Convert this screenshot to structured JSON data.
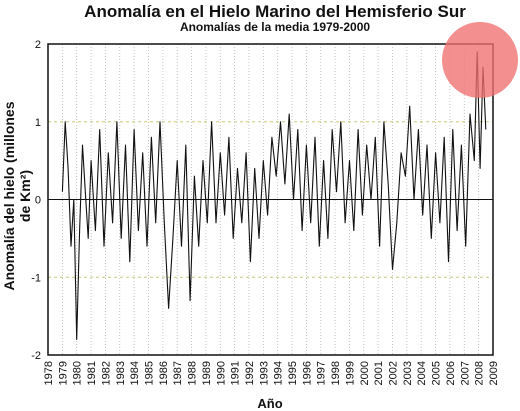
{
  "chart_data": {
    "type": "line",
    "title": "Anomalía en el Hielo Marino del Hemisferio Sur",
    "subtitle": "Anomalías de la media 1979-2000",
    "xlabel": "Año",
    "ylabel": "Anomalía del hielo (millones de Km²)",
    "xlim": [
      1978,
      2009
    ],
    "ylim": [
      -2,
      2
    ],
    "x_ticks": [
      "1978",
      "1979",
      "1980",
      "1981",
      "1982",
      "1983",
      "1984",
      "1985",
      "1986",
      "1987",
      "1988",
      "1989",
      "1990",
      "1991",
      "1992",
      "1993",
      "1994",
      "1995",
      "1996",
      "1997",
      "1998",
      "1999",
      "2000",
      "2001",
      "2002",
      "2003",
      "2004",
      "2005",
      "2006",
      "2007",
      "2008",
      "2009"
    ],
    "y_ticks": [
      "-2",
      "-1",
      "0",
      "1",
      "2"
    ],
    "grid": true,
    "series": [
      {
        "x": [
          1979.0,
          1979.2,
          1979.4,
          1979.6,
          1979.8,
          1980.0,
          1980.2,
          1980.4,
          1980.6,
          1980.8,
          1981.0,
          1981.3,
          1981.6,
          1981.9,
          1982.2,
          1982.5,
          1982.8,
          1983.1,
          1983.4,
          1983.7,
          1984.0,
          1984.3,
          1984.6,
          1984.9,
          1985.2,
          1985.5,
          1985.8,
          1986.1,
          1986.4,
          1986.7,
          1987.0,
          1987.3,
          1987.6,
          1987.9,
          1988.2,
          1988.5,
          1988.8,
          1989.1,
          1989.4,
          1989.7,
          1990.0,
          1990.3,
          1990.6,
          1990.9,
          1991.2,
          1991.5,
          1991.8,
          1992.1,
          1992.4,
          1992.7,
          1993.0,
          1993.3,
          1993.6,
          1993.9,
          1994.2,
          1994.5,
          1994.8,
          1995.1,
          1995.4,
          1995.7,
          1996.0,
          1996.3,
          1996.6,
          1996.9,
          1997.2,
          1997.5,
          1997.8,
          1998.1,
          1998.4,
          1998.7,
          1999.0,
          1999.3,
          1999.6,
          1999.9,
          2000.2,
          2000.5,
          2000.8,
          2001.1,
          2001.4,
          2001.7,
          2002.0,
          2002.3,
          2002.6,
          2002.9,
          2003.2,
          2003.5,
          2003.8,
          2004.1,
          2004.4,
          2004.7,
          2005.0,
          2005.3,
          2005.6,
          2005.9,
          2006.2,
          2006.5,
          2006.8,
          2007.1,
          2007.4,
          2007.7,
          2007.9,
          2008.1,
          2008.3,
          2008.5
        ],
        "values": [
          0.1,
          1.0,
          0.4,
          -0.6,
          0.0,
          -1.8,
          -0.4,
          0.7,
          0.1,
          -0.5,
          0.5,
          -0.4,
          0.9,
          -0.6,
          0.6,
          -0.3,
          1.0,
          -0.5,
          0.7,
          -0.8,
          0.9,
          -0.4,
          0.6,
          -0.6,
          0.8,
          -0.3,
          1.0,
          -0.3,
          -1.4,
          -0.5,
          0.5,
          -0.6,
          0.7,
          -1.3,
          0.3,
          -0.6,
          0.5,
          -0.3,
          1.0,
          -0.3,
          0.6,
          -0.2,
          0.8,
          -0.5,
          0.4,
          -0.3,
          0.6,
          -0.8,
          0.4,
          -0.5,
          0.5,
          -0.2,
          0.8,
          0.3,
          1.0,
          0.2,
          1.1,
          0.0,
          0.9,
          -0.4,
          0.7,
          -0.3,
          0.8,
          -0.6,
          0.5,
          -0.5,
          0.9,
          0.1,
          1.0,
          -0.3,
          0.5,
          -0.4,
          0.9,
          -0.2,
          0.7,
          0.0,
          0.8,
          -0.6,
          1.0,
          0.2,
          -0.9,
          -0.3,
          0.6,
          0.3,
          1.2,
          0.0,
          0.9,
          -0.2,
          0.7,
          -0.5,
          0.6,
          -0.3,
          0.8,
          -0.8,
          0.9,
          -0.4,
          0.7,
          -0.6,
          1.1,
          0.5,
          1.9,
          0.4,
          1.7,
          0.9
        ]
      }
    ],
    "highlight_color": "#f07070"
  }
}
